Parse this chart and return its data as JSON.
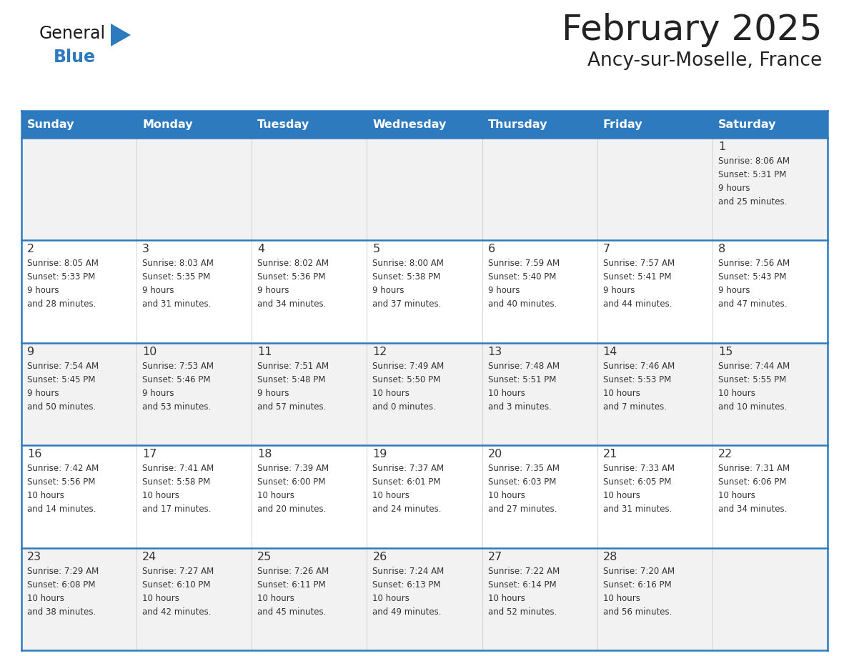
{
  "title": "February 2025",
  "subtitle": "Ancy-sur-Moselle, France",
  "header_bg": "#2E7ABF",
  "header_text_color": "#FFFFFF",
  "cell_bg_odd": "#F2F2F2",
  "cell_bg_even": "#FFFFFF",
  "grid_line_color": "#2E7ABF",
  "divider_color": "#2E7ABF",
  "text_color": "#333333",
  "days_of_week": [
    "Sunday",
    "Monday",
    "Tuesday",
    "Wednesday",
    "Thursday",
    "Friday",
    "Saturday"
  ],
  "logo_general_color": "#1a1a1a",
  "logo_blue_color": "#2E7ABF",
  "calendar_data": [
    [
      null,
      null,
      null,
      null,
      null,
      null,
      {
        "day": 1,
        "sunrise": "8:06 AM",
        "sunset": "5:31 PM",
        "daylight": "9 hours and 25 minutes."
      }
    ],
    [
      {
        "day": 2,
        "sunrise": "8:05 AM",
        "sunset": "5:33 PM",
        "daylight": "9 hours and 28 minutes."
      },
      {
        "day": 3,
        "sunrise": "8:03 AM",
        "sunset": "5:35 PM",
        "daylight": "9 hours and 31 minutes."
      },
      {
        "day": 4,
        "sunrise": "8:02 AM",
        "sunset": "5:36 PM",
        "daylight": "9 hours and 34 minutes."
      },
      {
        "day": 5,
        "sunrise": "8:00 AM",
        "sunset": "5:38 PM",
        "daylight": "9 hours and 37 minutes."
      },
      {
        "day": 6,
        "sunrise": "7:59 AM",
        "sunset": "5:40 PM",
        "daylight": "9 hours and 40 minutes."
      },
      {
        "day": 7,
        "sunrise": "7:57 AM",
        "sunset": "5:41 PM",
        "daylight": "9 hours and 44 minutes."
      },
      {
        "day": 8,
        "sunrise": "7:56 AM",
        "sunset": "5:43 PM",
        "daylight": "9 hours and 47 minutes."
      }
    ],
    [
      {
        "day": 9,
        "sunrise": "7:54 AM",
        "sunset": "5:45 PM",
        "daylight": "9 hours and 50 minutes."
      },
      {
        "day": 10,
        "sunrise": "7:53 AM",
        "sunset": "5:46 PM",
        "daylight": "9 hours and 53 minutes."
      },
      {
        "day": 11,
        "sunrise": "7:51 AM",
        "sunset": "5:48 PM",
        "daylight": "9 hours and 57 minutes."
      },
      {
        "day": 12,
        "sunrise": "7:49 AM",
        "sunset": "5:50 PM",
        "daylight": "10 hours and 0 minutes."
      },
      {
        "day": 13,
        "sunrise": "7:48 AM",
        "sunset": "5:51 PM",
        "daylight": "10 hours and 3 minutes."
      },
      {
        "day": 14,
        "sunrise": "7:46 AM",
        "sunset": "5:53 PM",
        "daylight": "10 hours and 7 minutes."
      },
      {
        "day": 15,
        "sunrise": "7:44 AM",
        "sunset": "5:55 PM",
        "daylight": "10 hours and 10 minutes."
      }
    ],
    [
      {
        "day": 16,
        "sunrise": "7:42 AM",
        "sunset": "5:56 PM",
        "daylight": "10 hours and 14 minutes."
      },
      {
        "day": 17,
        "sunrise": "7:41 AM",
        "sunset": "5:58 PM",
        "daylight": "10 hours and 17 minutes."
      },
      {
        "day": 18,
        "sunrise": "7:39 AM",
        "sunset": "6:00 PM",
        "daylight": "10 hours and 20 minutes."
      },
      {
        "day": 19,
        "sunrise": "7:37 AM",
        "sunset": "6:01 PM",
        "daylight": "10 hours and 24 minutes."
      },
      {
        "day": 20,
        "sunrise": "7:35 AM",
        "sunset": "6:03 PM",
        "daylight": "10 hours and 27 minutes."
      },
      {
        "day": 21,
        "sunrise": "7:33 AM",
        "sunset": "6:05 PM",
        "daylight": "10 hours and 31 minutes."
      },
      {
        "day": 22,
        "sunrise": "7:31 AM",
        "sunset": "6:06 PM",
        "daylight": "10 hours and 34 minutes."
      }
    ],
    [
      {
        "day": 23,
        "sunrise": "7:29 AM",
        "sunset": "6:08 PM",
        "daylight": "10 hours and 38 minutes."
      },
      {
        "day": 24,
        "sunrise": "7:27 AM",
        "sunset": "6:10 PM",
        "daylight": "10 hours and 42 minutes."
      },
      {
        "day": 25,
        "sunrise": "7:26 AM",
        "sunset": "6:11 PM",
        "daylight": "10 hours and 45 minutes."
      },
      {
        "day": 26,
        "sunrise": "7:24 AM",
        "sunset": "6:13 PM",
        "daylight": "10 hours and 49 minutes."
      },
      {
        "day": 27,
        "sunrise": "7:22 AM",
        "sunset": "6:14 PM",
        "daylight": "10 hours and 52 minutes."
      },
      {
        "day": 28,
        "sunrise": "7:20 AM",
        "sunset": "6:16 PM",
        "daylight": "10 hours and 56 minutes."
      },
      null
    ]
  ]
}
